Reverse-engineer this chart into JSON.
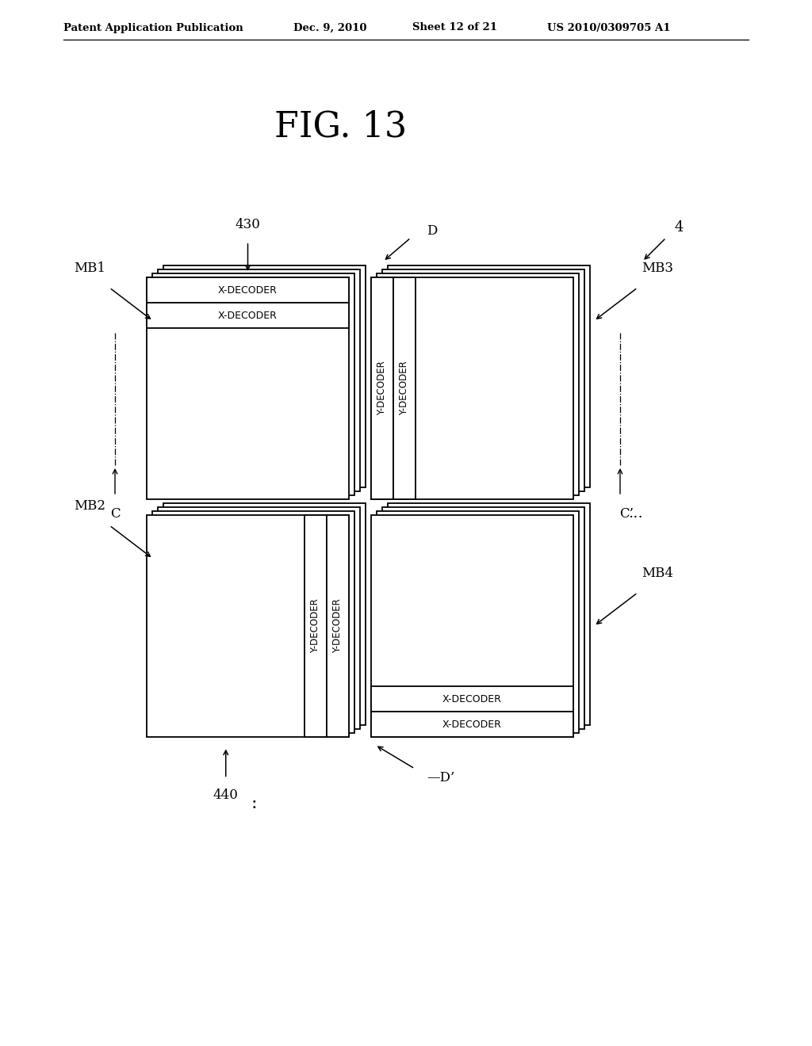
{
  "bg_color": "#ffffff",
  "text_color": "#000000",
  "header_left": "Patent Application Publication",
  "header_date": "Dec. 9, 2010",
  "header_sheet": "Sheet 12 of 21",
  "header_right": "US 2010/0309705 A1",
  "fig_title": "FIG. 13",
  "label_430": "430",
  "label_440": "440",
  "label_4": "4",
  "label_D": "D",
  "label_Dp": "D’",
  "label_C": "C",
  "label_Cp": "C’",
  "label_MB1": "MB1",
  "label_MB2": "MB2",
  "label_MB3": "MB3",
  "label_MB4": "MB4",
  "label_xdec": "X-DECODER",
  "label_ydec": "Y-DECODER",
  "label_dots_right": "...",
  "label_dots_bottom": ":"
}
